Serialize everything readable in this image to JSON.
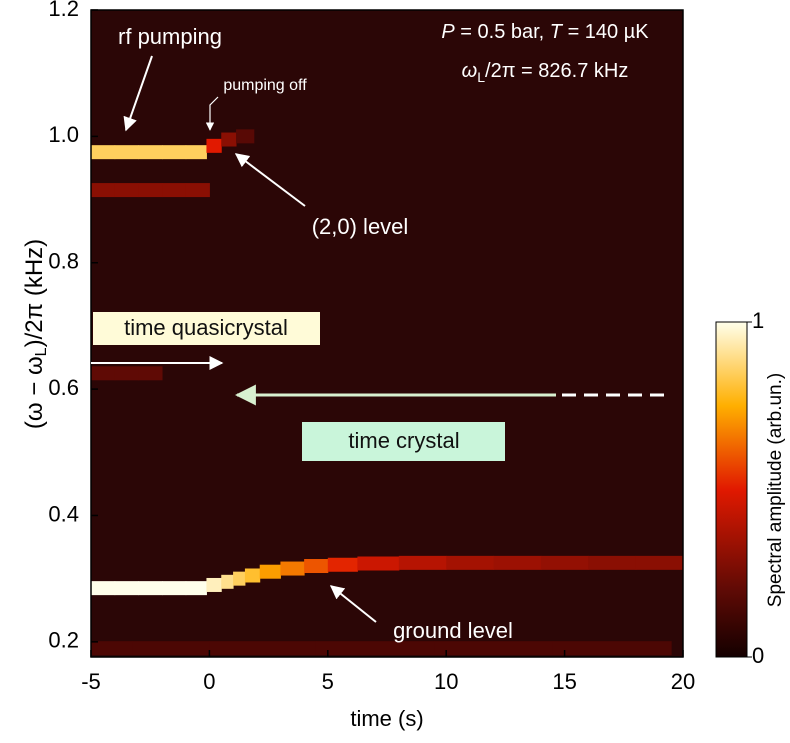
{
  "chart_data": {
    "type": "heatmap",
    "xlabel": "time (s)",
    "ylabel": [
      "(ω − ω",
      "L",
      ")/2π (kHz)"
    ],
    "xlim": [
      -5,
      20
    ],
    "xticks": [
      -5,
      0,
      5,
      10,
      15,
      20
    ],
    "ylim": [
      0.176,
      1.2
    ],
    "yticks": [
      0.2,
      0.4,
      0.6,
      0.8,
      {
        "value": 1,
        "label": "1.0"
      },
      1.2
    ],
    "colorbar": {
      "label": "Spectral amplitude (arb.un.)",
      "lim": [
        0,
        1
      ],
      "ticks": [
        0,
        1
      ]
    },
    "traces": [
      {
        "x": [
          -4.5,
          -3.5,
          -2.5,
          -1.5,
          -0.5,
          0.25,
          0.75,
          1.25,
          1.75,
          2.5,
          3.5,
          4.5,
          5.5,
          7,
          9,
          11,
          13,
          15,
          17,
          19
        ],
        "y": [
          0.285,
          0.285,
          0.285,
          0.285,
          0.285,
          0.29,
          0.295,
          0.3,
          0.305,
          0.311,
          0.316,
          0.32,
          0.322,
          0.324,
          0.325,
          0.325,
          0.325,
          0.325,
          0.325,
          0.325
        ],
        "amplitude": [
          1,
          1,
          1,
          1,
          1,
          0.95,
          0.9,
          0.85,
          0.8,
          0.72,
          0.66,
          0.6,
          0.52,
          0.45,
          0.4,
          0.36,
          0.34,
          0.32,
          0.3,
          0.3
        ]
      },
      {
        "x": [
          -4.5,
          -3.5,
          -2.5,
          -1.5,
          -0.5,
          0.25,
          0.75,
          1.5
        ],
        "y": [
          0.975,
          0.975,
          0.975,
          0.975,
          0.975,
          0.985,
          0.995,
          1.0
        ],
        "amplitude": [
          0.85,
          0.85,
          0.85,
          0.85,
          0.85,
          0.5,
          0.3,
          0.18
        ]
      },
      {
        "x": [
          -4.5,
          -3.5,
          -2.5,
          -1.5,
          -0.5
        ],
        "y": [
          0.915,
          0.915,
          0.915,
          0.915,
          0.915
        ],
        "amplitude": [
          0.3,
          0.3,
          0.3,
          0.3,
          0.3
        ]
      },
      {
        "x": [
          -4.5,
          -3.5,
          -2.5
        ],
        "y": [
          0.625,
          0.625,
          0.625
        ],
        "amplitude": [
          0.2,
          0.2,
          0.2
        ]
      },
      {
        "x": [
          -4.5,
          -2,
          2,
          7,
          12,
          17
        ],
        "y": [
          0.19,
          0.19,
          0.19,
          0.19,
          0.19,
          0.19
        ],
        "amplitude": [
          0.15,
          0.15,
          0.15,
          0.15,
          0.15,
          0.15
        ]
      }
    ],
    "annotations": {
      "rf_pumping": "rf pumping",
      "pumping_off": "pumping off",
      "level_20": "(2,0) level",
      "time_quasicrystal": "time quasicrystal",
      "time_crystal": "time crystal",
      "ground_level": "ground level",
      "conditions": [
        "P",
        " = 0.5 bar, ",
        "T",
        " = 140 µK"
      ],
      "larmor": [
        "ω",
        "L",
        "/2π = 826.7 kHz"
      ]
    }
  }
}
